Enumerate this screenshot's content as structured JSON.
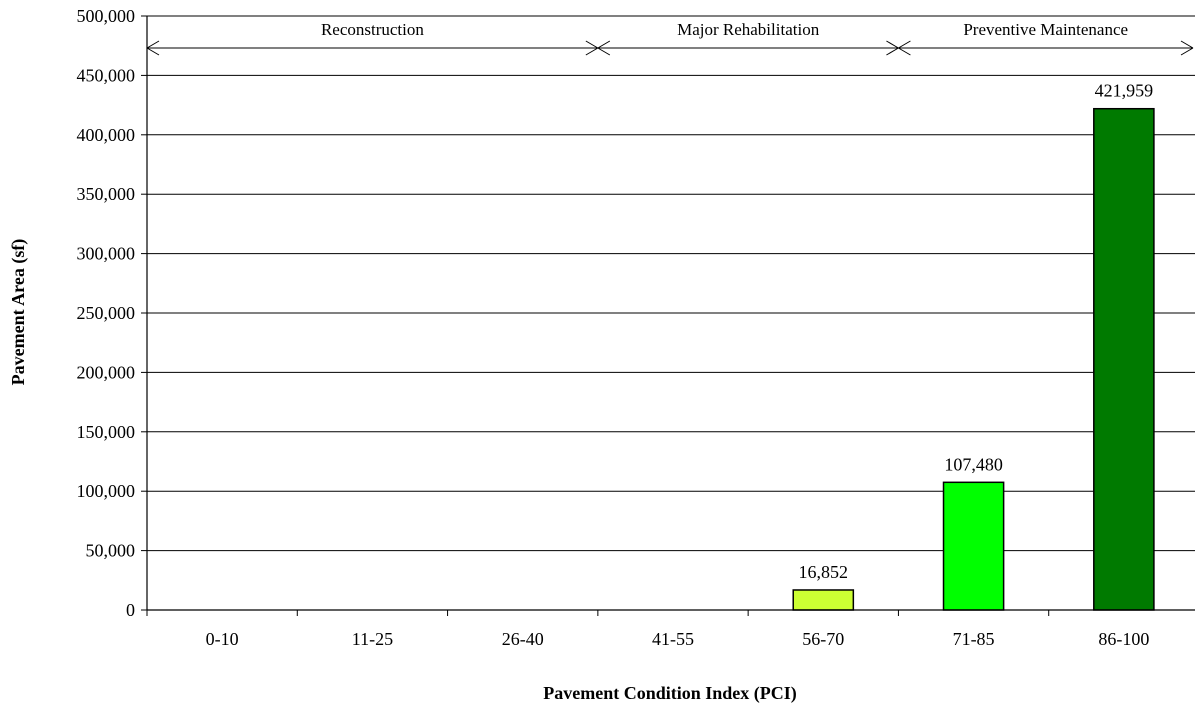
{
  "chart_data": {
    "type": "bar",
    "categories": [
      "0-10",
      "11-25",
      "26-40",
      "41-55",
      "56-70",
      "71-85",
      "86-100"
    ],
    "values": [
      0,
      0,
      0,
      0,
      16852,
      107480,
      421959
    ],
    "value_labels": [
      "",
      "",
      "",
      "",
      "16,852",
      "107,480",
      "421,959"
    ],
    "bar_colors": [
      "#000000",
      "#000000",
      "#000000",
      "#000000",
      "#CCFF33",
      "#00FF00",
      "#007A00"
    ],
    "ylim": [
      0,
      500000
    ],
    "yticks": [
      0,
      50000,
      100000,
      150000,
      200000,
      250000,
      300000,
      350000,
      400000,
      450000,
      500000
    ],
    "ytick_labels": [
      "0",
      "50,000",
      "100,000",
      "150,000",
      "200,000",
      "250,000",
      "300,000",
      "350,000",
      "400,000",
      "450,000",
      "500,000"
    ],
    "xlabel": "Pavement Condition Index (PCI)",
    "ylabel": "Pavement Area (sf)",
    "grid": "horizontal",
    "treatment_bands": [
      {
        "label": "Reconstruction",
        "from_category": 0,
        "to_category": 2
      },
      {
        "label": "Major Rehabilitation",
        "from_category": 3,
        "to_category": 4
      },
      {
        "label": "Preventive Maintenance",
        "from_category": 5,
        "to_category": 6
      }
    ]
  }
}
